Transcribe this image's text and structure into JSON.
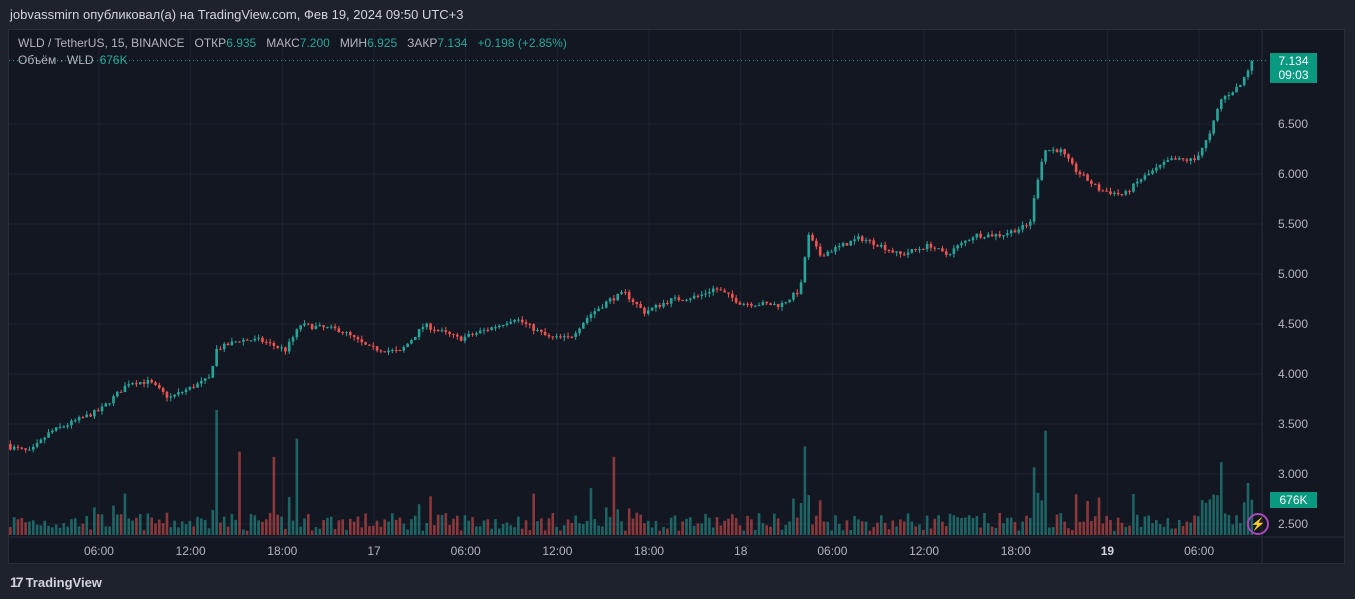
{
  "header": {
    "published": "jobvassmirn опубликовал(а) на TradingView.com, Фев 19, 2024 09:50 UTC+3"
  },
  "legend": {
    "symbol": "WLD / TetherUS, 15, BINANCE",
    "open_label": "ОТКР",
    "open": "6.935",
    "high_label": "МАКС",
    "high": "7.200",
    "low_label": "МИН",
    "low": "6.925",
    "close_label": "ЗАКР",
    "close": "7.134",
    "change": "+0.198 (+2.85%)"
  },
  "volume_legend": {
    "label": "Объём · WLD",
    "value": "676K"
  },
  "price_tag": {
    "price": "7.134",
    "countdown": "09:03"
  },
  "volume_tag": "676K",
  "footer": {
    "brand": "TradingView"
  },
  "colors": {
    "up": "#26a69a",
    "down": "#ef5350",
    "bg": "#131722",
    "grid": "#1f2330",
    "tag": "#089981",
    "alert": "#ab47bc"
  },
  "chart_data": {
    "type": "candlestick",
    "interval_minutes": 15,
    "y_ticks": [
      "2.500",
      "3.000",
      "3.500",
      "4.000",
      "4.500",
      "5.000",
      "5.500",
      "6.000",
      "6.500"
    ],
    "y_tick_values": [
      2.5,
      3.0,
      3.5,
      4.0,
      4.5,
      5.0,
      5.5,
      6.0,
      6.5
    ],
    "x_ticks": [
      {
        "label": "06:00",
        "h": 6
      },
      {
        "label": "12:00",
        "h": 12
      },
      {
        "label": "18:00",
        "h": 18
      },
      {
        "label": "17",
        "h": 24,
        "bold": false
      },
      {
        "label": "06:00",
        "h": 30
      },
      {
        "label": "12:00",
        "h": 36
      },
      {
        "label": "18:00",
        "h": 42
      },
      {
        "label": "18",
        "h": 48
      },
      {
        "label": "06:00",
        "h": 54
      },
      {
        "label": "12:00",
        "h": 60
      },
      {
        "label": "18:00",
        "h": 66
      },
      {
        "label": "19",
        "h": 72,
        "bold": true
      },
      {
        "label": "06:00",
        "h": 78
      }
    ],
    "x_units": "hours since Feb 16 00:00",
    "close_anchors": [
      [
        0.2,
        3.27
      ],
      [
        1.5,
        3.22
      ],
      [
        2.8,
        3.42
      ],
      [
        6.1,
        3.64
      ],
      [
        8.0,
        3.92
      ],
      [
        9.3,
        3.92
      ],
      [
        10.6,
        3.76
      ],
      [
        13.3,
        3.96
      ],
      [
        13.6,
        4.24
      ],
      [
        15.2,
        4.34
      ],
      [
        16.5,
        4.34
      ],
      [
        18.2,
        4.24
      ],
      [
        19.2,
        4.49
      ],
      [
        21.8,
        4.44
      ],
      [
        23.7,
        4.26
      ],
      [
        25.7,
        4.22
      ],
      [
        27.3,
        4.49
      ],
      [
        29.6,
        4.35
      ],
      [
        32.2,
        4.49
      ],
      [
        33.2,
        4.56
      ],
      [
        35.5,
        4.36
      ],
      [
        36.8,
        4.36
      ],
      [
        38.1,
        4.59
      ],
      [
        39.4,
        4.74
      ],
      [
        40.4,
        4.81
      ],
      [
        41.7,
        4.62
      ],
      [
        43.4,
        4.74
      ],
      [
        45.3,
        4.78
      ],
      [
        46.3,
        4.86
      ],
      [
        48.0,
        4.71
      ],
      [
        50.6,
        4.69
      ],
      [
        51.9,
        4.84
      ],
      [
        52.4,
        5.39
      ],
      [
        53.2,
        5.19
      ],
      [
        55.8,
        5.36
      ],
      [
        57.1,
        5.29
      ],
      [
        58.4,
        5.19
      ],
      [
        60.4,
        5.29
      ],
      [
        61.4,
        5.19
      ],
      [
        63.3,
        5.39
      ],
      [
        65.0,
        5.39
      ],
      [
        66.9,
        5.49
      ],
      [
        67.6,
        6.09
      ],
      [
        67.9,
        6.24
      ],
      [
        68.9,
        6.24
      ],
      [
        69.9,
        6.04
      ],
      [
        71.5,
        5.84
      ],
      [
        73.1,
        5.79
      ],
      [
        74.1,
        5.94
      ],
      [
        76.1,
        6.14
      ],
      [
        77.7,
        6.14
      ],
      [
        78.7,
        6.39
      ],
      [
        79.4,
        6.74
      ],
      [
        80.7,
        6.89
      ],
      [
        81.5,
        7.134
      ]
    ],
    "volume_spikes_k": [
      [
        13.6,
        2400
      ],
      [
        15.2,
        1600
      ],
      [
        17.5,
        1500
      ],
      [
        18.9,
        1850
      ],
      [
        38.1,
        900
      ],
      [
        39.8,
        1500
      ],
      [
        52.3,
        1700
      ],
      [
        67.1,
        1300
      ],
      [
        67.9,
        2000
      ],
      [
        79.4,
        1400
      ],
      [
        81.2,
        1000
      ]
    ],
    "last_volume_k": 676,
    "last_price": 7.134
  }
}
